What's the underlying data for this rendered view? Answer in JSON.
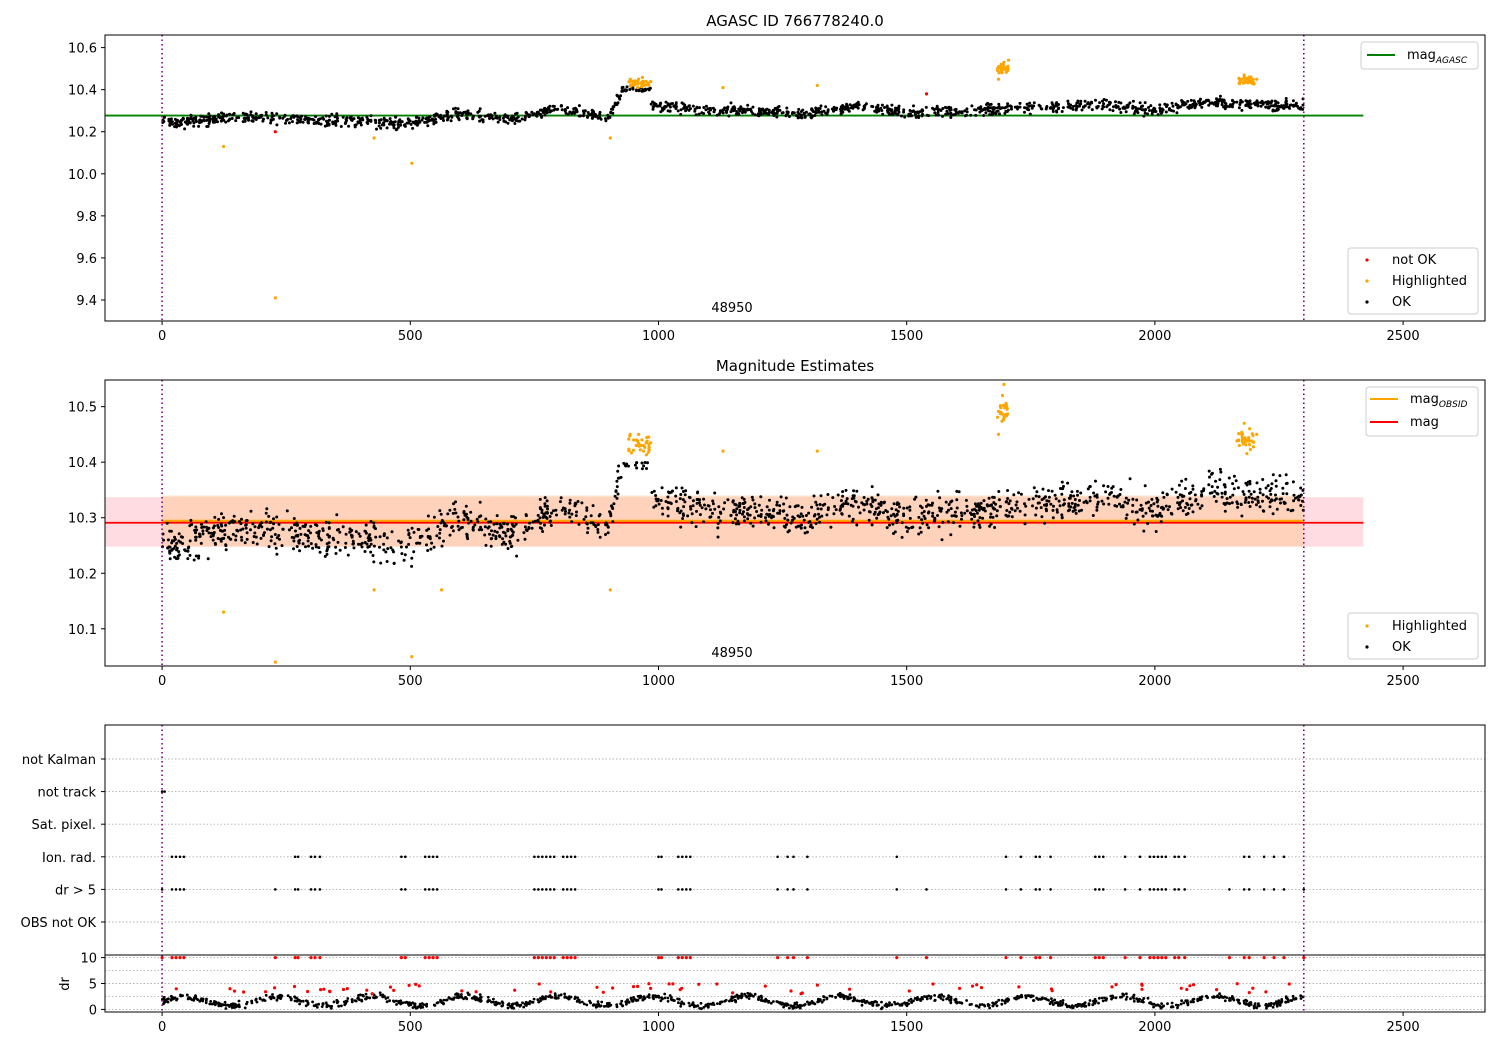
{
  "chart_data": [
    {
      "type": "scatter",
      "title": "AGASC ID 766778240.0",
      "xlim": [
        -115,
        2665
      ],
      "ylim": [
        9.3,
        10.66
      ],
      "xticks": [
        0,
        500,
        1000,
        1500,
        2000,
        2500
      ],
      "xtick_labels": [
        "0",
        "500",
        "1000",
        "1500",
        "2000",
        "2500"
      ],
      "yticks": [
        9.4,
        9.6,
        9.8,
        10.0,
        10.2,
        10.4,
        10.6
      ],
      "ytick_labels": [
        "9.4",
        "9.6",
        "9.8",
        "10.0",
        "10.2",
        "10.4",
        "10.6"
      ],
      "obsid_boundaries": [
        0,
        2300
      ],
      "obsid_label": "48950",
      "legend_top": {
        "placement": "top-right",
        "entries": [
          "mag",
          "AGASC"
        ]
      },
      "legend_bottom": {
        "placement": "lower-right",
        "entries": [
          "not OK",
          "Highlighted",
          "OK"
        ]
      },
      "lines": [
        {
          "name": "mag AGASC",
          "color": "#008000",
          "x": [
            -115,
            2420
          ],
          "y": [
            10.277,
            10.277
          ]
        }
      ],
      "series": [
        {
          "name": "OK",
          "color": "#000000",
          "description": "~2300 points, values ≈ 10.18–10.40",
          "envelope": {
            "x": [
              0,
              100,
              200,
              300,
              400,
              500,
              600,
              700,
              800,
              900,
              930,
              990,
              1100,
              1200,
              1300,
              1400,
              1500,
              1600,
              1700,
              1800,
              1900,
              2000,
              2100,
              2200,
              2300
            ],
            "y": [
              10.24,
              10.26,
              10.27,
              10.25,
              10.25,
              10.24,
              10.29,
              10.26,
              10.31,
              10.27,
              10.41,
              10.33,
              10.3,
              10.3,
              10.29,
              10.32,
              10.29,
              10.3,
              10.31,
              10.32,
              10.33,
              10.3,
              10.34,
              10.33,
              10.32
            ],
            "spread": 0.05
          }
        },
        {
          "name": "Highlighted",
          "color": "#FFA500",
          "x": [
            124,
            228,
            427,
            503,
            903,
            943,
            950,
            955,
            960,
            965,
            970,
            975,
            945,
            958,
            1130,
            1320,
            1685,
            1690,
            1693,
            1696,
            1700,
            1705,
            2170,
            2175,
            2180,
            2185,
            2190,
            2205
          ],
          "y": [
            10.13,
            9.41,
            10.17,
            10.05,
            10.17,
            10.45,
            10.44,
            10.43,
            10.45,
            10.43,
            10.42,
            10.44,
            10.42,
            10.41,
            10.41,
            10.42,
            10.45,
            10.49,
            10.52,
            10.53,
            10.5,
            10.54,
            10.43,
            10.45,
            10.47,
            10.44,
            10.46,
            10.45
          ]
        },
        {
          "name": "not OK",
          "color": "#FF0000",
          "x": [
            228,
            1540
          ],
          "y": [
            10.2,
            10.38
          ]
        }
      ]
    },
    {
      "type": "scatter",
      "title": "Magnitude Estimates",
      "xlim": [
        -115,
        2665
      ],
      "ylim": [
        10.033,
        10.548
      ],
      "xticks": [
        0,
        500,
        1000,
        1500,
        2000,
        2500
      ],
      "xtick_labels": [
        "0",
        "500",
        "1000",
        "1500",
        "2000",
        "2500"
      ],
      "yticks": [
        10.1,
        10.2,
        10.3,
        10.4,
        10.5
      ],
      "ytick_labels": [
        "10.1",
        "10.2",
        "10.3",
        "10.4",
        "10.5"
      ],
      "obsid_boundaries": [
        0,
        2300
      ],
      "obsid_label": "48950",
      "legend_top": {
        "placement": "top-right",
        "entries": [
          "mag",
          "OBSID",
          "mag"
        ]
      },
      "legend_bottom": {
        "placement": "lower-right",
        "entries": [
          "Highlighted",
          "OK"
        ]
      },
      "bands": [
        {
          "name": "mag band",
          "color": "#FFC0C8",
          "x": [
            -115,
            2420
          ],
          "y": [
            10.248,
            10.337
          ]
        },
        {
          "name": "mag OBSID band",
          "color": "#FFCBA4",
          "x": [
            0,
            2300
          ],
          "y": [
            10.248,
            10.34
          ]
        }
      ],
      "lines": [
        {
          "name": "mag OBSID",
          "color": "#FFA500",
          "x": [
            0,
            2300
          ],
          "y": [
            10.294,
            10.294
          ]
        },
        {
          "name": "mag",
          "color": "#FF0000",
          "x": [
            -115,
            2420
          ],
          "y": [
            10.291,
            10.291
          ]
        }
      ],
      "series": [
        {
          "name": "OK",
          "color": "#000000",
          "description": "~2300 points, values ≈ 10.18–10.40"
        },
        {
          "name": "Highlighted",
          "color": "#FFA500",
          "x": [
            124,
            228,
            427,
            503,
            563,
            903,
            943,
            950,
            955,
            960,
            965,
            970,
            1130,
            1320,
            1685,
            1690,
            1693,
            1696,
            1700,
            2170,
            2175,
            2180,
            2185,
            2205
          ],
          "y": [
            10.13,
            10.04,
            10.17,
            10.05,
            10.17,
            10.17,
            10.45,
            10.44,
            10.43,
            10.45,
            10.43,
            10.42,
            10.42,
            10.42,
            10.45,
            10.49,
            10.52,
            10.54,
            10.5,
            10.43,
            10.45,
            10.47,
            10.44,
            10.45
          ]
        }
      ]
    },
    {
      "type": "scatter",
      "title": "",
      "xlim": [
        -115,
        2665
      ],
      "ylabels": [
        "not Kalman",
        "not track",
        "Sat. pixel.",
        "Ion. rad.",
        "dr > 5",
        "OBS not OK"
      ],
      "flags": {
        "not track": [
          0,
          5
        ],
        "Ion. rad.": [
          20,
          28,
          36,
          44,
          268,
          274,
          300,
          308,
          318,
          482,
          490,
          530,
          538,
          546,
          554,
          750,
          758,
          766,
          774,
          782,
          790,
          808,
          816,
          824,
          832,
          1000,
          1006,
          1040,
          1048,
          1056,
          1064,
          1240,
          1260,
          1272,
          1300,
          1480,
          1700,
          1730,
          1760,
          1768,
          1790,
          1880,
          1888,
          1896,
          1940,
          1970,
          1990,
          1998,
          2006,
          2014,
          2022,
          2040,
          2048,
          2060,
          2180,
          2190,
          2220,
          2240,
          2260
        ],
        "dr > 5": [
          0,
          20,
          28,
          36,
          44,
          228,
          268,
          274,
          300,
          308,
          318,
          482,
          490,
          530,
          538,
          546,
          554,
          750,
          758,
          766,
          774,
          782,
          790,
          808,
          816,
          824,
          832,
          1000,
          1006,
          1040,
          1048,
          1056,
          1064,
          1240,
          1260,
          1272,
          1300,
          1480,
          1540,
          1700,
          1730,
          1760,
          1768,
          1790,
          1880,
          1888,
          1896,
          1940,
          1970,
          1990,
          1998,
          2006,
          2014,
          2022,
          2040,
          2048,
          2060,
          2150,
          2180,
          2190,
          2220,
          2240,
          2260,
          2300
        ]
      }
    },
    {
      "type": "scatter",
      "ylabel": "dr",
      "xlim": [
        -115,
        2665
      ],
      "ylim": [
        -0.5,
        10.5
      ],
      "xticks": [
        0,
        500,
        1000,
        1500,
        2000,
        2500
      ],
      "xtick_labels": [
        "0",
        "500",
        "1000",
        "1500",
        "2000",
        "2500"
      ],
      "yticks": [
        0,
        5,
        10
      ],
      "ytick_labels": [
        "0",
        "5",
        "10"
      ],
      "description": "dr per frame: black points mostly 0–3.5, red points where dr is flagged"
    }
  ]
}
